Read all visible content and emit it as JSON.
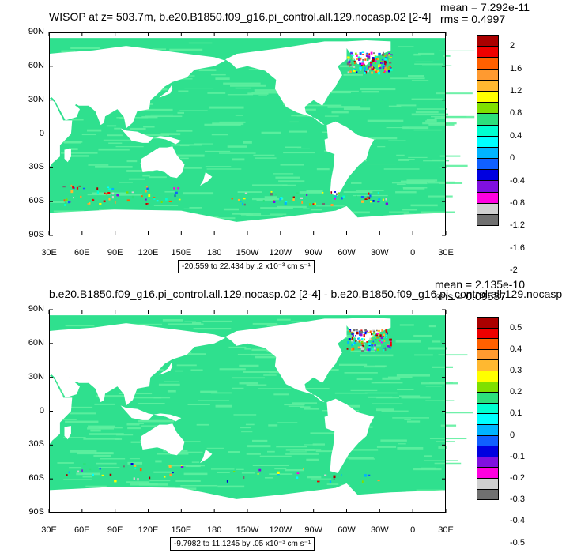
{
  "panels": [
    {
      "title": "WISOP at z= 503.7m, b.e20.B1850.f09_g16.pi_control.all.129.nocasp.02 [2-4]",
      "mean": "mean = 7.292e-11",
      "rms": "rms = 0.4997",
      "range": "-20.559 to 22.434 by .2 x10⁻³ cm s⁻¹",
      "colorbar_labels": [
        "2",
        "1.6",
        "1.2",
        "0.8",
        "0.4",
        "0",
        "-0.4",
        "-0.8",
        "-1.2",
        "-1.6",
        "-2"
      ]
    },
    {
      "title": "b.e20.B1850.f09_g16.pi_control.all.129.nocasp.02 [2-4] - b.e20.B1850.f09_g16.pi_control.all.129.nocasp",
      "mean": "mean = 2.135e-10",
      "rms": "rms = 0.09537",
      "range": "-9.7982 to 11.1245 by .05 x10⁻³ cm s⁻¹",
      "colorbar_labels": [
        "0.5",
        "0.4",
        "0.3",
        "0.2",
        "0.1",
        "0",
        "-0.1",
        "-0.2",
        "-0.3",
        "-0.4",
        "-0.5"
      ]
    }
  ],
  "lat_labels": [
    "90N",
    "60N",
    "30N",
    "0",
    "30S",
    "60S",
    "90S"
  ],
  "lon_labels": [
    "30E",
    "60E",
    "90E",
    "120E",
    "150E",
    "180",
    "150W",
    "120W",
    "90W",
    "60W",
    "30W",
    "0",
    "30E"
  ],
  "colors": {
    "ocean_main": "#2fe08e",
    "ocean_light": "#5ff0a0",
    "land": "#ffffff",
    "colorbar": [
      "#aa0000",
      "#ee0000",
      "#ff6000",
      "#ff9a30",
      "#ffb830",
      "#ffff00",
      "#7fe000",
      "#2ce07c",
      "#00ffd0",
      "#00ffff",
      "#00b4ff",
      "#1060ff",
      "#0000e0",
      "#8010e0",
      "#ff00e0",
      "#d0d0d0",
      "#707070"
    ]
  }
}
